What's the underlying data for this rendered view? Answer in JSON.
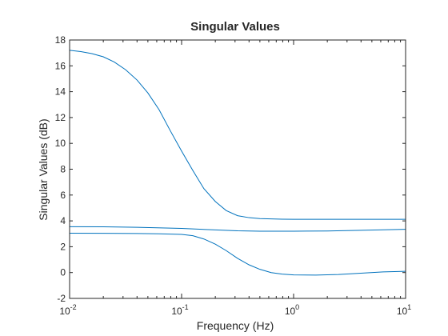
{
  "chart_data": {
    "type": "line",
    "title": "Singular Values",
    "xlabel": "Frequency (Hz)",
    "ylabel": "Singular Values (dB)",
    "xscale": "log",
    "xlim": [
      0.01,
      10
    ],
    "ylim": [
      -2,
      18
    ],
    "grid": false,
    "x_ticks": [
      {
        "value": 0.01,
        "base": "10",
        "exp": "-2"
      },
      {
        "value": 0.1,
        "base": "10",
        "exp": "-1"
      },
      {
        "value": 1,
        "base": "10",
        "exp": "0"
      },
      {
        "value": 10,
        "base": "10",
        "exp": "1"
      }
    ],
    "y_ticks": [
      "-2",
      "0",
      "2",
      "4",
      "6",
      "8",
      "10",
      "12",
      "14",
      "16",
      "18"
    ],
    "line_color": "#0072BD",
    "series": [
      {
        "x": [
          0.01,
          0.0126,
          0.0158,
          0.02,
          0.025,
          0.0316,
          0.04,
          0.05,
          0.063,
          0.079,
          0.1,
          0.126,
          0.158,
          0.2,
          0.25,
          0.316,
          0.4,
          0.5,
          0.63,
          0.79,
          1,
          1.58,
          2.51,
          3.98,
          6.3,
          10
        ],
        "y": [
          17.2,
          17.1,
          16.95,
          16.7,
          16.3,
          15.7,
          14.9,
          13.9,
          12.6,
          11.0,
          9.4,
          7.9,
          6.5,
          5.5,
          4.8,
          4.4,
          4.25,
          4.18,
          4.15,
          4.13,
          4.12,
          4.12,
          4.12,
          4.12,
          4.12,
          4.12
        ]
      },
      {
        "x": [
          0.01,
          0.02,
          0.04,
          0.1,
          0.2,
          0.316,
          0.5,
          1,
          2,
          4,
          10
        ],
        "y": [
          3.55,
          3.54,
          3.5,
          3.42,
          3.3,
          3.23,
          3.2,
          3.2,
          3.22,
          3.27,
          3.35
        ]
      },
      {
        "x": [
          0.01,
          0.02,
          0.04,
          0.063,
          0.1,
          0.126,
          0.158,
          0.2,
          0.25,
          0.316,
          0.4,
          0.5,
          0.63,
          0.79,
          1,
          1.58,
          2.51,
          3.98,
          6.3,
          10
        ],
        "y": [
          3.05,
          3.04,
          3.02,
          3.0,
          2.95,
          2.85,
          2.6,
          2.2,
          1.7,
          1.1,
          0.6,
          0.25,
          0.0,
          -0.12,
          -0.18,
          -0.2,
          -0.15,
          -0.05,
          0.05,
          0.1
        ]
      }
    ]
  }
}
